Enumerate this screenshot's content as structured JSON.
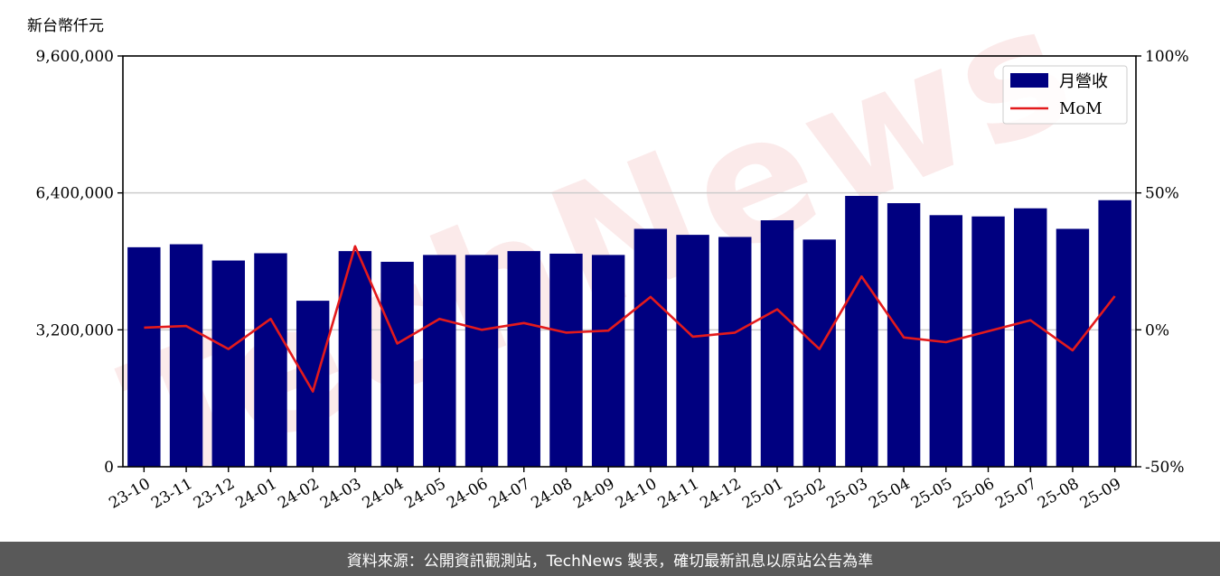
{
  "chart_data": {
    "type": "bar",
    "y_unit_label": "新台幣仟元",
    "categories": [
      "23-10",
      "23-11",
      "23-12",
      "24-01",
      "24-02",
      "24-03",
      "24-04",
      "24-05",
      "24-06",
      "24-07",
      "24-08",
      "24-09",
      "24-10",
      "24-11",
      "24-12",
      "25-01",
      "25-02",
      "25-03",
      "25-04",
      "25-05",
      "25-06",
      "25-07",
      "25-08",
      "25-09"
    ],
    "series": [
      {
        "name": "月營收",
        "axis": "left",
        "type": "bar",
        "color": "#000080",
        "values": [
          5130000,
          5200000,
          4820000,
          4990000,
          3880000,
          5040000,
          4790000,
          4950000,
          4950000,
          5040000,
          4980000,
          4950000,
          5560000,
          5420000,
          5370000,
          5760000,
          5310000,
          6330000,
          6160000,
          5880000,
          5850000,
          6040000,
          5560000,
          6230000
        ]
      },
      {
        "name": "MoM",
        "axis": "right",
        "type": "line",
        "color": "#e31a1c",
        "values": [
          0.8,
          1.4,
          -7.0,
          4.0,
          -22.5,
          30.5,
          -5.0,
          4.0,
          0.0,
          2.5,
          -1.0,
          -0.3,
          12.0,
          -2.5,
          -1.0,
          7.5,
          -7.0,
          19.5,
          -2.8,
          -4.5,
          -0.5,
          3.5,
          -7.5,
          12.3
        ]
      }
    ],
    "ylim_left": [
      0,
      9600000
    ],
    "yticks_left": [
      "0",
      "3,200,000",
      "6,400,000",
      "9,600,000"
    ],
    "ylim_right": [
      -50,
      100
    ],
    "yticks_right": [
      "-50%",
      "0%",
      "50%",
      "100%"
    ],
    "grid": "horizontal",
    "legend_position": "top-right"
  },
  "watermark": "TechNews",
  "footer": {
    "text": "資料來源：公開資訊觀測站，TechNews 製表，確切最新訊息以原站公告為準"
  }
}
